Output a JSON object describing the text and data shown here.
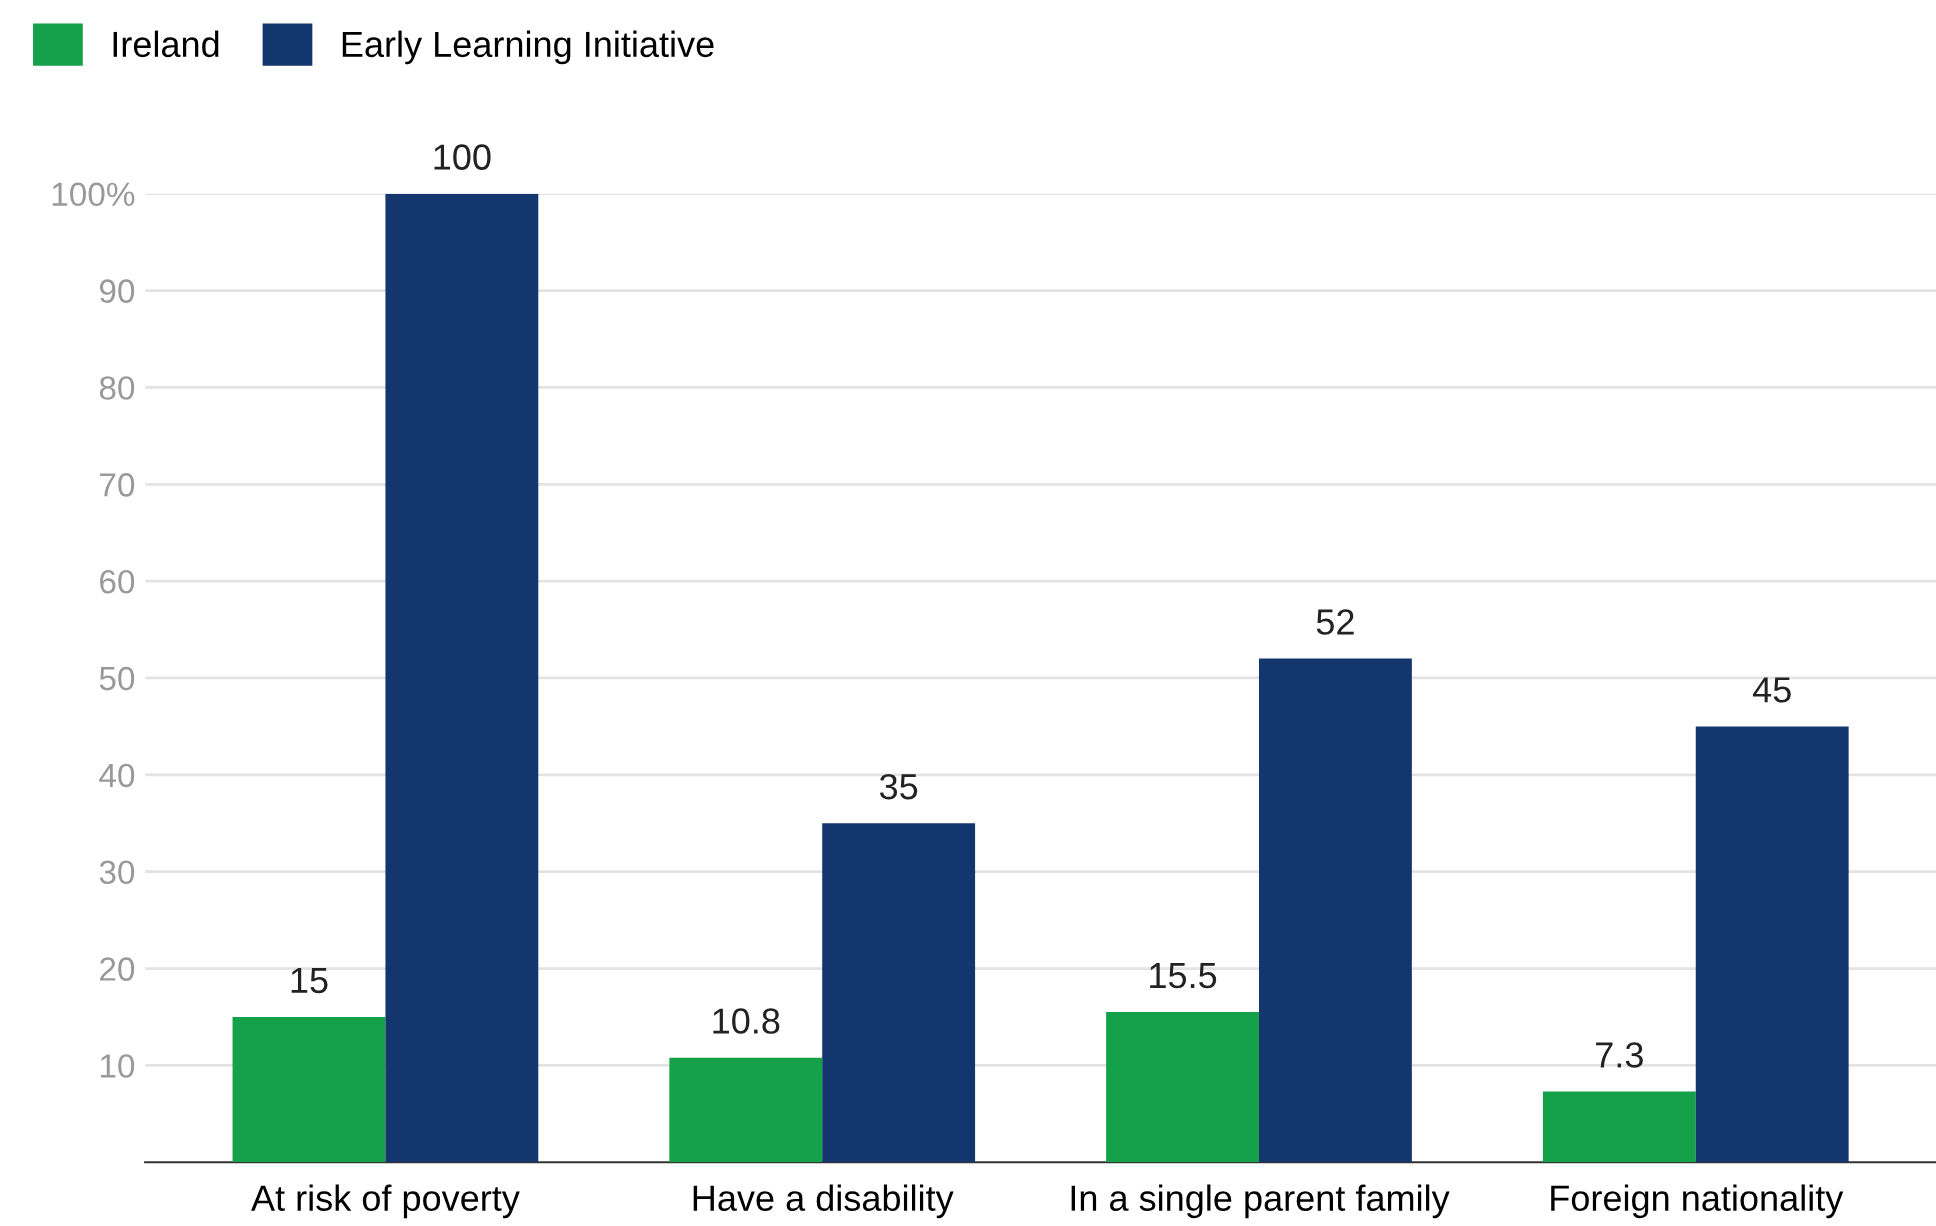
{
  "chart_data": {
    "type": "bar",
    "categories": [
      "At risk of poverty",
      "Have a disability",
      "In a single parent family",
      "Foreign nationality"
    ],
    "series": [
      {
        "name": "Ireland",
        "color": "#15a04a",
        "values": [
          15,
          10.8,
          15.5,
          7.3
        ]
      },
      {
        "name": "Early Learning Initiative",
        "color": "#14366e",
        "values": [
          100,
          35,
          52,
          45
        ]
      }
    ],
    "ylim": [
      0,
      100
    ],
    "yticks": [
      10,
      20,
      30,
      40,
      50,
      60,
      70,
      80,
      90,
      {
        "value": 100,
        "label": "100%"
      }
    ],
    "grid": "y",
    "legend": "top left",
    "data_labels": true
  }
}
